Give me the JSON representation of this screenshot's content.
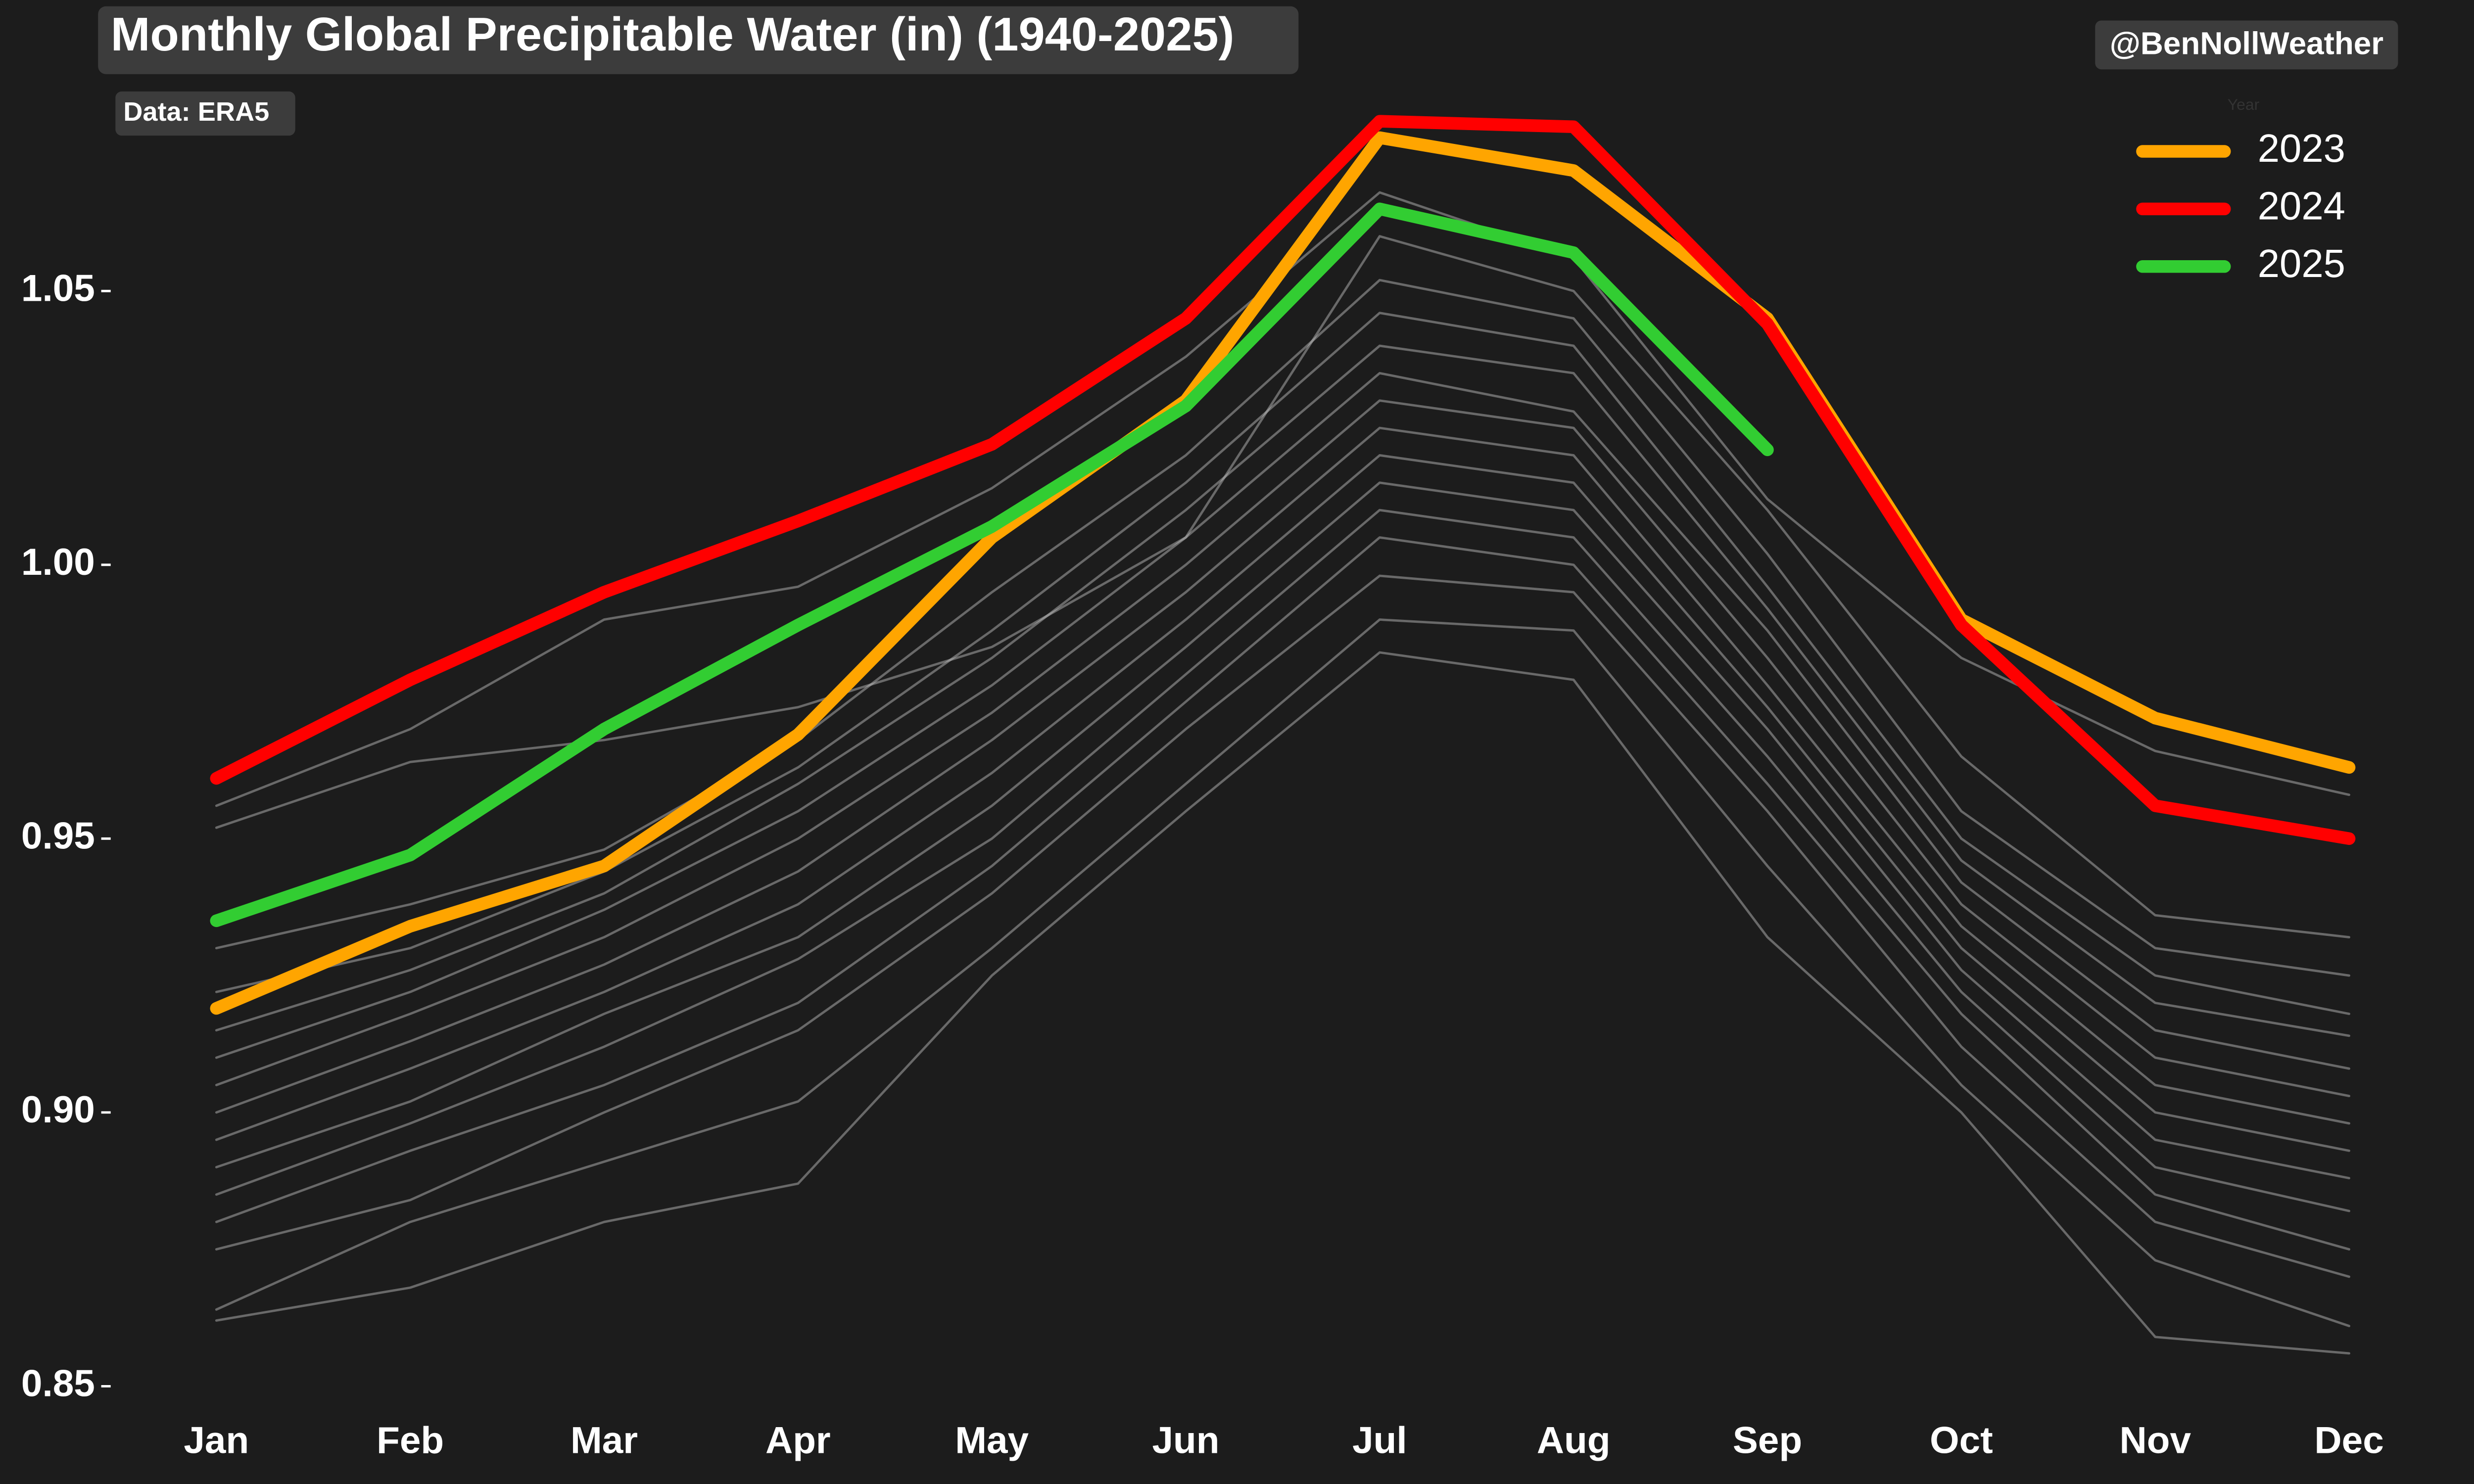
{
  "chart_data": {
    "type": "line",
    "title": "Monthly Global Precipitable Water (in) (1940-2025)",
    "subtitle": "Data: ERA5",
    "credit": "@BenNollWeather",
    "legend_title": "Year",
    "legend": "upper right",
    "categories": [
      "Jan",
      "Feb",
      "Mar",
      "Apr",
      "May",
      "Jun",
      "Jul",
      "Aug",
      "Sep",
      "Oct",
      "Nov",
      "Dec"
    ],
    "ylim": [
      0.85,
      1.085
    ],
    "yticks": [
      0.85,
      {
        "value": 0.9,
        "label": "0.90"
      },
      0.95,
      {
        "value": 1.0,
        "label": "1.00"
      },
      1.05
    ],
    "series": [
      {
        "name": "2023",
        "color": "#ffa500",
        "values": [
          0.919,
          0.934,
          0.945,
          0.969,
          1.005,
          1.03,
          1.078,
          1.072,
          1.045,
          0.99,
          0.972,
          0.963
        ]
      },
      {
        "name": "2024",
        "color": "#ff0000",
        "values": [
          0.961,
          0.979,
          0.995,
          1.008,
          1.022,
          1.045,
          1.081,
          1.08,
          1.044,
          0.989,
          0.956,
          0.95
        ]
      },
      {
        "name": "2025",
        "color": "#32cd32",
        "values": [
          0.935,
          0.947,
          0.97,
          0.989,
          1.007,
          1.029,
          1.065,
          1.057,
          1.021,
          null,
          null,
          null
        ]
      }
    ],
    "background_lines": {
      "color": "#c8c8c8",
      "values": [
        [
          0.862,
          0.868,
          0.88,
          0.887,
          0.925,
          0.955,
          0.984,
          0.979,
          0.932,
          0.9,
          0.859,
          0.856
        ],
        [
          0.864,
          0.88,
          0.891,
          0.902,
          0.93,
          0.96,
          0.99,
          0.988,
          0.945,
          0.905,
          0.873,
          0.861
        ],
        [
          0.875,
          0.884,
          0.9,
          0.915,
          0.94,
          0.97,
          0.998,
          0.995,
          0.955,
          0.912,
          0.88,
          0.87
        ],
        [
          0.88,
          0.893,
          0.905,
          0.92,
          0.945,
          0.975,
          1.005,
          1.0,
          0.96,
          0.918,
          0.885,
          0.875
        ],
        [
          0.885,
          0.898,
          0.912,
          0.928,
          0.95,
          0.98,
          1.01,
          1.005,
          0.965,
          0.922,
          0.89,
          0.882
        ],
        [
          0.89,
          0.902,
          0.918,
          0.932,
          0.956,
          0.985,
          1.015,
          1.01,
          0.97,
          0.926,
          0.895,
          0.888
        ],
        [
          0.895,
          0.908,
          0.922,
          0.938,
          0.962,
          0.99,
          1.02,
          1.015,
          0.974,
          0.93,
          0.9,
          0.893
        ],
        [
          0.9,
          0.913,
          0.927,
          0.944,
          0.968,
          0.995,
          1.025,
          1.02,
          0.978,
          0.934,
          0.905,
          0.898
        ],
        [
          0.905,
          0.918,
          0.932,
          0.95,
          0.973,
          1.0,
          1.03,
          1.025,
          0.983,
          0.938,
          0.91,
          0.903
        ],
        [
          0.91,
          0.922,
          0.937,
          0.955,
          0.978,
          1.005,
          1.035,
          1.028,
          0.988,
          0.942,
          0.915,
          0.908
        ],
        [
          0.915,
          0.926,
          0.94,
          0.96,
          0.983,
          1.01,
          1.04,
          1.035,
          0.992,
          0.946,
          0.92,
          0.914
        ],
        [
          0.922,
          0.93,
          0.944,
          0.963,
          0.988,
          1.015,
          1.046,
          1.04,
          0.996,
          0.95,
          0.925,
          0.918
        ],
        [
          0.93,
          0.938,
          0.948,
          0.968,
          0.995,
          1.02,
          1.052,
          1.045,
          1.002,
          0.955,
          0.93,
          0.925
        ],
        [
          0.952,
          0.964,
          0.968,
          0.974,
          0.985,
          1.005,
          1.06,
          1.05,
          1.01,
          0.965,
          0.936,
          0.932
        ],
        [
          0.956,
          0.97,
          0.99,
          0.996,
          1.014,
          1.038,
          1.068,
          1.056,
          1.012,
          0.983,
          0.966,
          0.958
        ]
      ]
    }
  }
}
